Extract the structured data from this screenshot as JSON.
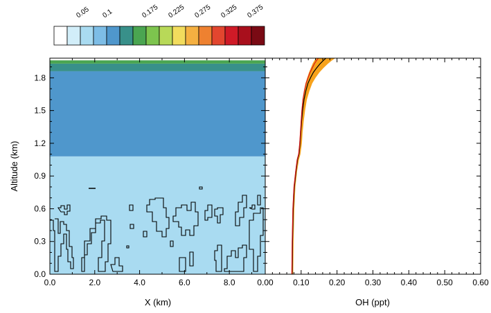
{
  "chart_data": [
    {
      "type": "heatmap",
      "panel": "left",
      "xlabel": "X (km)",
      "ylabel": "Altitude (km)",
      "xlim": [
        0,
        9.6
      ],
      "ylim": [
        0,
        1.98
      ],
      "x_ticks": [
        "0.0",
        "2.0",
        "4.0",
        "6.0",
        "8.0"
      ],
      "y_ticks": [
        "0.0",
        "0.3",
        "0.6",
        "0.9",
        "1.2",
        "1.5",
        "1.8"
      ],
      "colorbar": {
        "levels": [
          0.025,
          0.05,
          0.075,
          0.1,
          0.125,
          0.15,
          0.175,
          0.2,
          0.225,
          0.25,
          0.275,
          0.3,
          0.325,
          0.35,
          0.375
        ],
        "tick_labels": [
          "0.05",
          "0.1",
          "0.175",
          "0.225",
          "0.275",
          "0.325",
          "0.375"
        ],
        "colors": [
          "#ffffff",
          "#d2eef9",
          "#a9dbf1",
          "#7dbde6",
          "#4f97cc",
          "#38908a",
          "#4aa551",
          "#7dc44e",
          "#b8d958",
          "#f2dc5d",
          "#f5b041",
          "#ee8130",
          "#e2462f",
          "#cf1a27",
          "#a80f1c",
          "#7a0a14"
        ]
      },
      "bands": [
        {
          "y_from": 0.0,
          "y_to": 1.08,
          "value": 0.06,
          "color": "#a9dbf1"
        },
        {
          "y_from": 1.08,
          "y_to": 1.86,
          "value": 0.09,
          "color": "#4f97cc"
        },
        {
          "y_from": 1.86,
          "y_to": 1.93,
          "value": 0.12,
          "color": "#38908a"
        },
        {
          "y_from": 1.93,
          "y_to": 1.96,
          "value": 0.14,
          "color": "#4aa551"
        }
      ]
    },
    {
      "type": "line",
      "panel": "right",
      "xlabel": "OH (ppt)",
      "xlim": [
        0,
        0.6
      ],
      "ylim": [
        0,
        1.98
      ],
      "x_ticks": [
        "0.00",
        "0.10",
        "0.20",
        "0.30",
        "0.40",
        "0.50",
        "0.60"
      ],
      "series": [
        {
          "style": "mean",
          "color": "#000000",
          "x": [
            0.075,
            0.076,
            0.078,
            0.081,
            0.086,
            0.09,
            0.094,
            0.097,
            0.099,
            0.101,
            0.104,
            0.108,
            0.113,
            0.119,
            0.126,
            0.134,
            0.143,
            0.153,
            0.162,
            0.169
          ],
          "y": [
            0.0,
            0.3,
            0.6,
            0.8,
            0.95,
            1.05,
            1.1,
            1.2,
            1.3,
            1.4,
            1.5,
            1.6,
            1.68,
            1.75,
            1.8,
            1.85,
            1.89,
            1.93,
            1.96,
            1.98
          ]
        },
        {
          "style": "median",
          "color": "#d7191c",
          "x": [
            0.074,
            0.075,
            0.077,
            0.08,
            0.085,
            0.089,
            0.093,
            0.096,
            0.098,
            0.1,
            0.102,
            0.105,
            0.109,
            0.114,
            0.119,
            0.125,
            0.131,
            0.137,
            0.143,
            0.148
          ],
          "y": [
            0.0,
            0.3,
            0.6,
            0.8,
            0.95,
            1.05,
            1.1,
            1.2,
            1.3,
            1.4,
            1.5,
            1.6,
            1.68,
            1.75,
            1.8,
            1.85,
            1.89,
            1.93,
            1.96,
            1.98
          ]
        }
      ],
      "band": {
        "color": "#f7a21b",
        "y": [
          0.0,
          0.3,
          0.6,
          0.8,
          0.95,
          1.05,
          1.1,
          1.2,
          1.3,
          1.4,
          1.5,
          1.6,
          1.68,
          1.75,
          1.8,
          1.85,
          1.89,
          1.93,
          1.96,
          1.98
        ],
        "lower": [
          0.073,
          0.074,
          0.076,
          0.079,
          0.084,
          0.088,
          0.092,
          0.095,
          0.097,
          0.099,
          0.101,
          0.104,
          0.108,
          0.112,
          0.117,
          0.122,
          0.127,
          0.132,
          0.137,
          0.141
        ],
        "upper": [
          0.078,
          0.079,
          0.081,
          0.084,
          0.089,
          0.094,
          0.098,
          0.102,
          0.104,
          0.107,
          0.111,
          0.116,
          0.123,
          0.131,
          0.14,
          0.151,
          0.162,
          0.175,
          0.186,
          0.195
        ]
      }
    }
  ]
}
